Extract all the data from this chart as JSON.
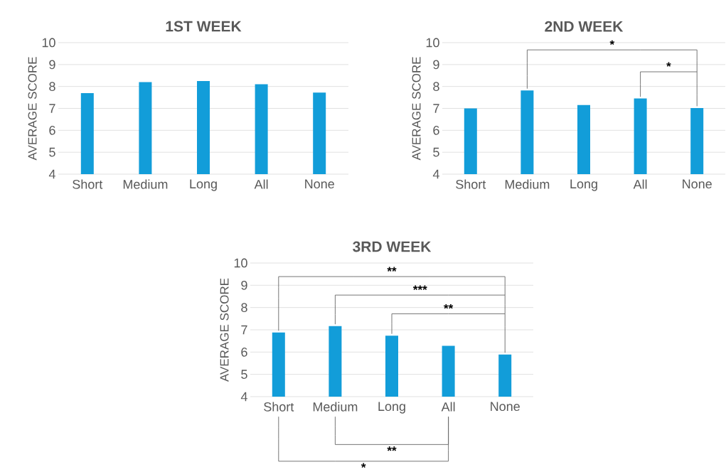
{
  "chart_data": [
    {
      "type": "bar",
      "title": "1ST WEEK",
      "ylabel": "AVERAGE SCORE",
      "categories": [
        "Short",
        "Medium",
        "Long",
        "All",
        "None"
      ],
      "values": [
        7.7,
        8.2,
        8.25,
        8.1,
        7.72
      ],
      "color": "#129dd9",
      "ylim": [
        4,
        10
      ],
      "yticks": [
        4,
        5,
        6,
        7,
        8,
        9,
        10
      ],
      "grid": "y"
    },
    {
      "type": "bar",
      "title": "2ND WEEK",
      "ylabel": "AVERAGE SCORE",
      "categories": [
        "Short",
        "Medium",
        "Long",
        "All",
        "None"
      ],
      "values": [
        7.0,
        7.82,
        7.15,
        7.45,
        7.02
      ],
      "color": "#129dd9",
      "ylim": [
        4,
        10
      ],
      "yticks": [
        4,
        5,
        6,
        7,
        8,
        9,
        10
      ],
      "grid": "y",
      "annotations": [
        "*",
        "*"
      ]
    },
    {
      "type": "bar",
      "title": "3RD WEEK",
      "ylabel": "AVERAGE SCORE",
      "categories": [
        "Short",
        "Medium",
        "Long",
        "All",
        "None"
      ],
      "values": [
        6.88,
        7.17,
        6.74,
        6.28,
        5.89
      ],
      "color": "#129dd9",
      "ylim": [
        4,
        10
      ],
      "yticks": [
        4,
        5,
        6,
        7,
        8,
        9,
        10
      ],
      "grid": "y",
      "annotations": [
        "**",
        "***",
        "**",
        "**",
        "*"
      ]
    }
  ]
}
